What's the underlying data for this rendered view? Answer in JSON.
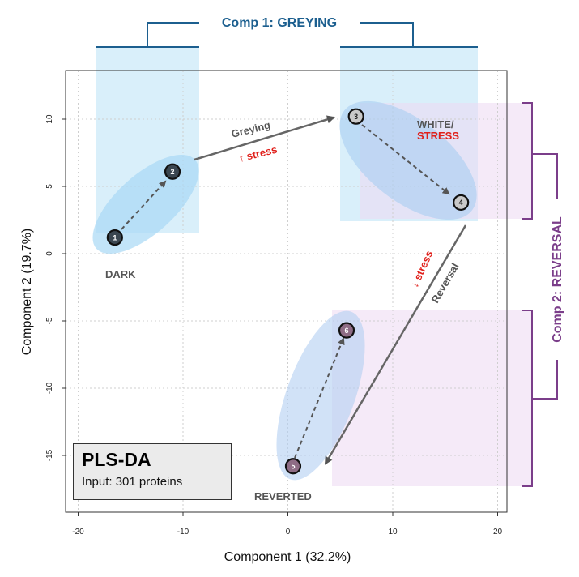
{
  "chart_data": {
    "type": "scatter",
    "title": "",
    "xlabel": "Component 1 (32.2%)",
    "ylabel": "Component 2 (19.7%)",
    "xlim": [
      -22,
      21
    ],
    "ylim": [
      -19,
      13
    ],
    "xticks": [
      -20,
      -10,
      0,
      10,
      20
    ],
    "yticks": [
      10,
      5,
      0,
      -5,
      -10,
      -15
    ],
    "grid": true,
    "points": [
      {
        "label": "1",
        "x": -16.5,
        "y": 1.2,
        "fill": "#3a4650"
      },
      {
        "label": "2",
        "x": -11,
        "y": 6.1,
        "fill": "#3a4650"
      },
      {
        "label": "3",
        "x": 6.5,
        "y": 10.2,
        "fill": "#c9c9c9"
      },
      {
        "label": "4",
        "x": 16.5,
        "y": 3.8,
        "fill": "#c9c9c9"
      },
      {
        "label": "5",
        "x": 0.5,
        "y": -15.8,
        "fill": "#8e6c85"
      },
      {
        "label": "6",
        "x": 5.6,
        "y": -5.7,
        "fill": "#8e6c85"
      }
    ],
    "groups": [
      {
        "name": "DARK",
        "points": [
          "1",
          "2"
        ]
      },
      {
        "name_line1": "WHITE/",
        "name_line2": "STRESS",
        "points": [
          "3",
          "4"
        ]
      },
      {
        "name": "REVERTED",
        "points": [
          "5",
          "6"
        ]
      }
    ],
    "arrows": [
      {
        "from": "2",
        "to": "3",
        "label": "Greying",
        "sublabel": "↑ stress"
      },
      {
        "from": "4",
        "to": "5",
        "label": "Reversal",
        "sublabel": "↓ stress"
      }
    ],
    "annotations": {
      "comp1": "Comp 1: GREYING",
      "comp2": "Comp 2: REVERSAL"
    }
  },
  "legend": {
    "title": "PLS-DA",
    "subtitle": "Input: 301 proteins"
  },
  "colors": {
    "comp1": "#1c5f8f",
    "comp2": "#7b3e8a",
    "stress": "#e0201b",
    "arrow": "#666666"
  }
}
